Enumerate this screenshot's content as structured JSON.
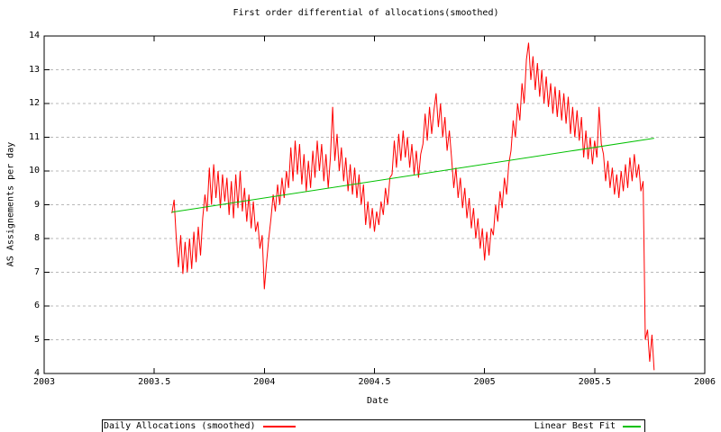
{
  "chart": {
    "title": "First order differential of allocations(smoothed)",
    "xlabel": "Date",
    "ylabel": "AS Assignements per day"
  },
  "legend": {
    "entries": [
      {
        "label": "Daily Allocations (smoothed)",
        "color": "#ff0000",
        "sample_width": 36
      },
      {
        "label": "Linear Best Fit",
        "color": "#00c000",
        "sample_width": 20
      }
    ]
  },
  "colors": {
    "axis": "#000000",
    "grid": "#b8b8b8",
    "background": "#ffffff",
    "daily_series": "#ff0000",
    "fit_series": "#00c000"
  },
  "chart_data": {
    "type": "line",
    "title": "First order differential of allocations(smoothed)",
    "xlabel": "Date",
    "ylabel": "AS Assignements per day",
    "xlim": [
      2003,
      2006
    ],
    "ylim": [
      4,
      14
    ],
    "x_ticks": [
      2003,
      2003.5,
      2004,
      2004.5,
      2005,
      2005.5,
      2006
    ],
    "x_tick_labels": [
      "2003",
      "2003.5",
      "2004",
      "2004.5",
      "2005",
      "2005.5",
      "2006"
    ],
    "y_ticks": [
      4,
      5,
      6,
      7,
      8,
      9,
      10,
      11,
      12,
      13,
      14
    ],
    "y_tick_labels": [
      "4",
      "5",
      "6",
      "7",
      "8",
      "9",
      "10",
      "11",
      "12",
      "13",
      "14"
    ],
    "grid": "horizontal-dashed",
    "legend_position": "below",
    "series": [
      {
        "name": "Daily Allocations (smoothed)",
        "color": "#ff0000",
        "x_start": 2003.58,
        "x_step": 0.01,
        "values": [
          8.75,
          9.15,
          8.0,
          7.15,
          8.1,
          6.95,
          7.9,
          7.0,
          8.0,
          7.1,
          8.2,
          7.3,
          8.35,
          7.5,
          8.6,
          9.3,
          8.8,
          10.1,
          9.0,
          10.2,
          9.2,
          10.0,
          8.9,
          9.9,
          9.1,
          9.8,
          8.7,
          9.7,
          8.6,
          9.9,
          8.9,
          10.0,
          8.8,
          9.5,
          8.5,
          9.3,
          8.3,
          9.1,
          8.2,
          8.5,
          7.7,
          8.1,
          6.5,
          7.3,
          8.0,
          8.6,
          9.3,
          8.8,
          9.6,
          9.0,
          9.8,
          9.2,
          10.0,
          9.5,
          10.7,
          9.7,
          10.9,
          9.9,
          10.8,
          9.6,
          10.5,
          9.4,
          10.3,
          9.5,
          10.6,
          9.8,
          10.9,
          10.0,
          10.8,
          9.7,
          10.5,
          9.5,
          10.4,
          11.9,
          10.3,
          11.1,
          10.0,
          10.7,
          9.7,
          10.4,
          9.4,
          10.2,
          9.3,
          10.1,
          9.2,
          9.9,
          9.0,
          9.6,
          8.4,
          9.1,
          8.3,
          8.9,
          8.2,
          8.8,
          8.4,
          9.1,
          8.7,
          9.5,
          9.0,
          9.8,
          9.9,
          10.9,
          10.1,
          11.1,
          10.3,
          11.2,
          10.4,
          11.0,
          10.1,
          10.8,
          9.9,
          10.6,
          9.8,
          10.5,
          10.8,
          11.7,
          10.9,
          11.9,
          11.1,
          11.8,
          12.3,
          11.3,
          12.0,
          11.0,
          11.6,
          10.6,
          11.2,
          10.4,
          9.5,
          10.1,
          9.2,
          9.8,
          8.9,
          9.5,
          8.6,
          9.2,
          8.3,
          8.9,
          8.0,
          8.6,
          7.7,
          8.3,
          7.35,
          8.2,
          7.5,
          8.3,
          8.1,
          9.0,
          8.5,
          9.4,
          8.9,
          9.8,
          9.3,
          10.2,
          10.6,
          11.5,
          11.0,
          12.0,
          11.5,
          12.6,
          12.0,
          13.3,
          13.8,
          12.7,
          13.4,
          12.4,
          13.2,
          12.2,
          13.0,
          12.0,
          12.8,
          11.9,
          12.6,
          11.7,
          12.5,
          11.6,
          12.4,
          11.5,
          12.3,
          11.4,
          12.2,
          11.1,
          11.9,
          11.0,
          11.8,
          10.9,
          11.6,
          10.4,
          11.2,
          10.35,
          11.0,
          10.2,
          10.9,
          10.4,
          11.9,
          10.8,
          10.5,
          9.7,
          10.3,
          9.5,
          10.1,
          9.3,
          9.9,
          9.2,
          10.0,
          9.4,
          10.2,
          9.5,
          10.4,
          9.7,
          10.5,
          9.8,
          10.2,
          9.4,
          9.7,
          5.0,
          5.3,
          4.35,
          5.15,
          4.1
        ]
      },
      {
        "name": "Linear Best Fit",
        "color": "#00c000",
        "points": [
          [
            2003.58,
            8.78
          ],
          [
            2005.77,
            10.97
          ]
        ]
      }
    ]
  }
}
